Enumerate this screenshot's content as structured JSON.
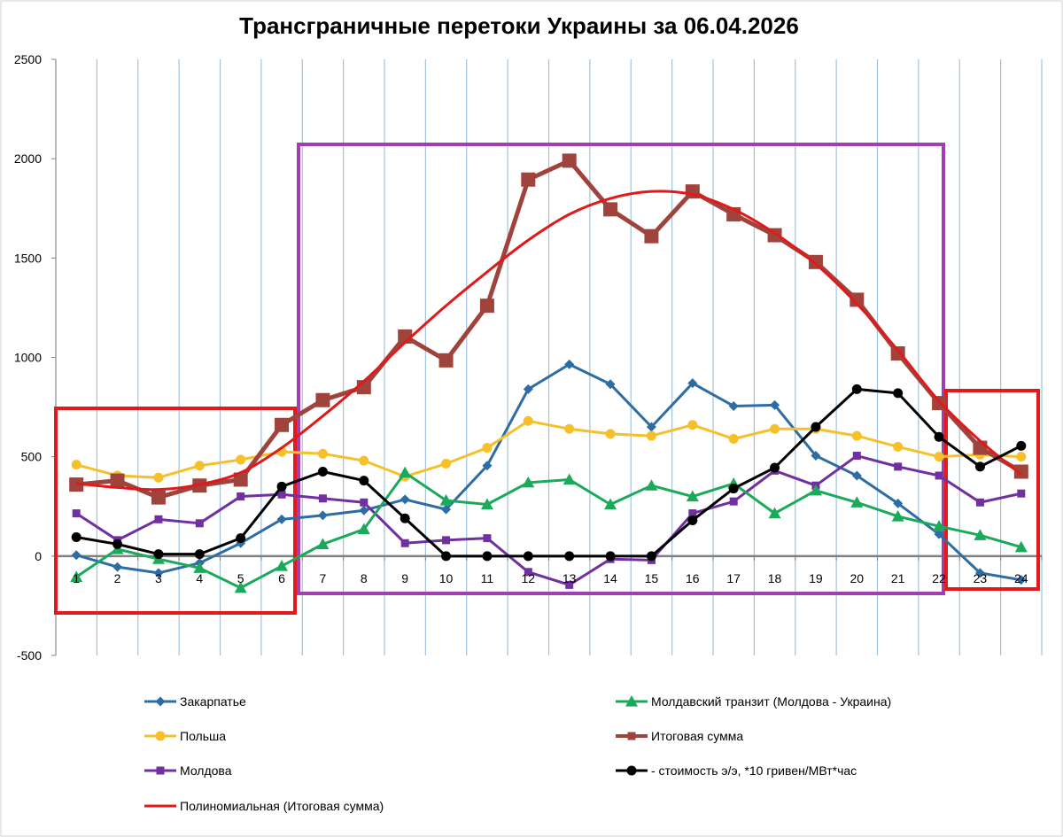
{
  "chart_data": {
    "type": "line",
    "title": "Трансграничные перетоки Украины за 06.04.2026",
    "x": [
      "1",
      "2",
      "3",
      "4",
      "5",
      "6",
      "7",
      "8",
      "9",
      "10",
      "11",
      "12",
      "13",
      "14",
      "15",
      "16",
      "17",
      "18",
      "19",
      "20",
      "21",
      "22",
      "23",
      "24"
    ],
    "ylim": [
      -500,
      2500
    ],
    "yticks": [
      -500,
      0,
      500,
      1000,
      1500,
      2000,
      2500
    ],
    "grid": "vertical",
    "legend_position": "bottom",
    "series": [
      {
        "name": "Закарпатье",
        "color": "#2e6da4",
        "marker": "diamond",
        "values": [
          5,
          -55,
          -85,
          -35,
          65,
          185,
          205,
          230,
          285,
          235,
          455,
          840,
          965,
          865,
          650,
          870,
          755,
          760,
          505,
          405,
          265,
          110,
          -85,
          -120
        ]
      },
      {
        "name": "Польша",
        "color": "#f5c02a",
        "marker": "circle",
        "values": [
          460,
          405,
          395,
          455,
          485,
          525,
          515,
          480,
          400,
          465,
          545,
          680,
          640,
          615,
          605,
          660,
          590,
          640,
          640,
          605,
          550,
          500,
          510,
          500
        ]
      },
      {
        "name": "Молдова",
        "color": "#7030a0",
        "marker": "square",
        "values": [
          215,
          80,
          185,
          165,
          300,
          310,
          290,
          270,
          65,
          80,
          90,
          -80,
          -145,
          -15,
          -20,
          215,
          275,
          430,
          355,
          505,
          450,
          405,
          270,
          315
        ]
      },
      {
        "name": "Молдавский транзит (Молдова - Украина)",
        "color": "#1aaa5a",
        "marker": "triangle",
        "values": [
          -105,
          35,
          -15,
          -60,
          -160,
          -50,
          60,
          135,
          420,
          280,
          260,
          370,
          385,
          260,
          355,
          300,
          365,
          215,
          330,
          270,
          200,
          150,
          105,
          45
        ]
      },
      {
        "name": "Итоговая сумма",
        "color": "#a0433c",
        "marker": "bigsquare",
        "values": [
          360,
          380,
          295,
          355,
          385,
          660,
          785,
          850,
          1105,
          985,
          1260,
          1895,
          1990,
          1745,
          1610,
          1835,
          1720,
          1615,
          1480,
          1290,
          1020,
          770,
          545,
          425
        ]
      },
      {
        "name": "- стоимость э/э, *10 гривен/МВт*час",
        "color": "#000000",
        "marker": "circle",
        "values": [
          95,
          60,
          10,
          10,
          90,
          350,
          425,
          380,
          190,
          0,
          0,
          0,
          0,
          0,
          0,
          180,
          340,
          445,
          650,
          840,
          820,
          600,
          450,
          555
        ]
      },
      {
        "name": "Полиномиальная (Итоговая сумма)",
        "color": "#e0191b",
        "marker": "none",
        "trendline": true,
        "values": [
          365,
          345,
          335,
          360,
          420,
          545,
          705,
          880,
          1075,
          1260,
          1430,
          1590,
          1720,
          1800,
          1835,
          1820,
          1745,
          1625,
          1470,
          1270,
          1035,
          780,
          580,
          410
        ]
      }
    ],
    "annotation_boxes": [
      {
        "color": "#e31a1c",
        "from_x": "1",
        "to_x": "6"
      },
      {
        "color": "#a040b0",
        "from_x": "7",
        "to_x": "22"
      },
      {
        "color": "#e31a1c",
        "from_x": "23",
        "to_x": "24"
      }
    ]
  }
}
